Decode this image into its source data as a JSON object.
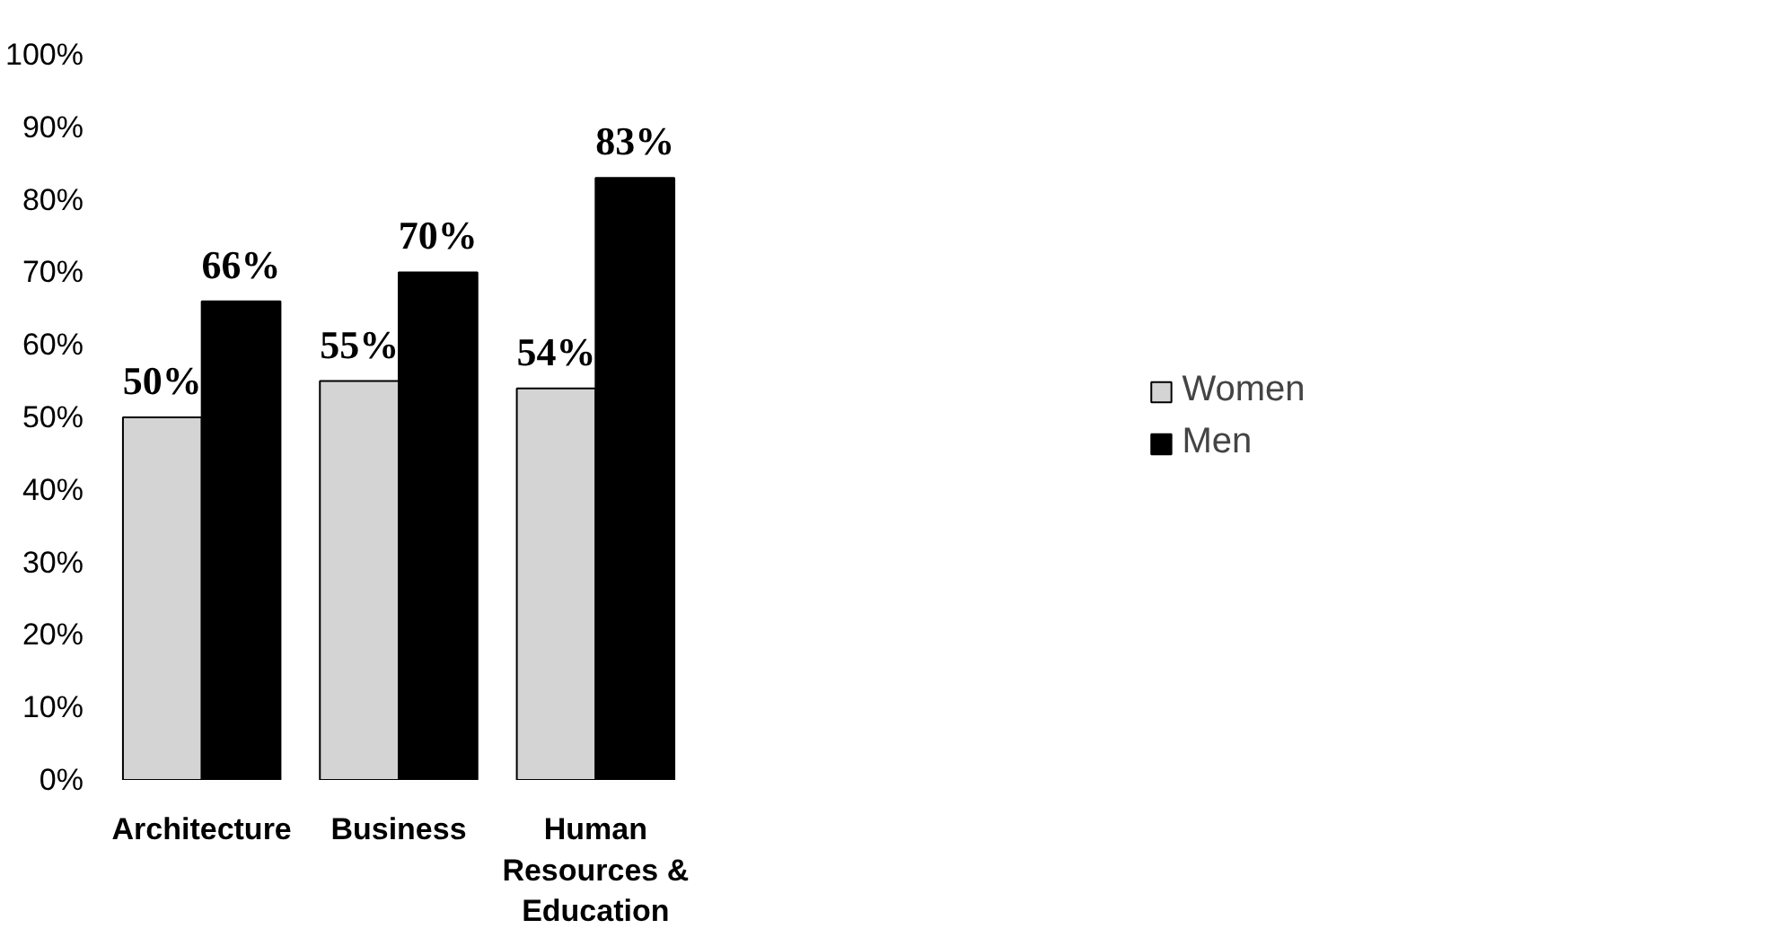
{
  "chart_data": {
    "type": "bar",
    "categories": [
      "Architecture",
      "Business",
      "Human Resources & Education"
    ],
    "series": [
      {
        "name": "Women",
        "color": "#d4d4d4",
        "values": [
          50,
          55,
          54
        ]
      },
      {
        "name": "Men",
        "color": "#000000",
        "values": [
          66,
          70,
          83
        ]
      }
    ],
    "ylim": [
      0,
      100
    ],
    "yticks": [
      {
        "value": 0,
        "label": "0%"
      },
      {
        "value": 10,
        "label": "10%"
      },
      {
        "value": 20,
        "label": "20%"
      },
      {
        "value": 30,
        "label": "30%"
      },
      {
        "value": 40,
        "label": "40%"
      },
      {
        "value": 50,
        "label": "50%"
      },
      {
        "value": 60,
        "label": "60%"
      },
      {
        "value": 70,
        "label": "70%"
      },
      {
        "value": 80,
        "label": "80%"
      },
      {
        "value": 90,
        "label": "90%"
      },
      {
        "value": 100,
        "label": "100%"
      }
    ],
    "value_labels": [
      [
        "50%",
        "55%",
        "54%"
      ],
      [
        "66%",
        "70%",
        "83%"
      ]
    ],
    "grid": false,
    "legend": "right"
  }
}
